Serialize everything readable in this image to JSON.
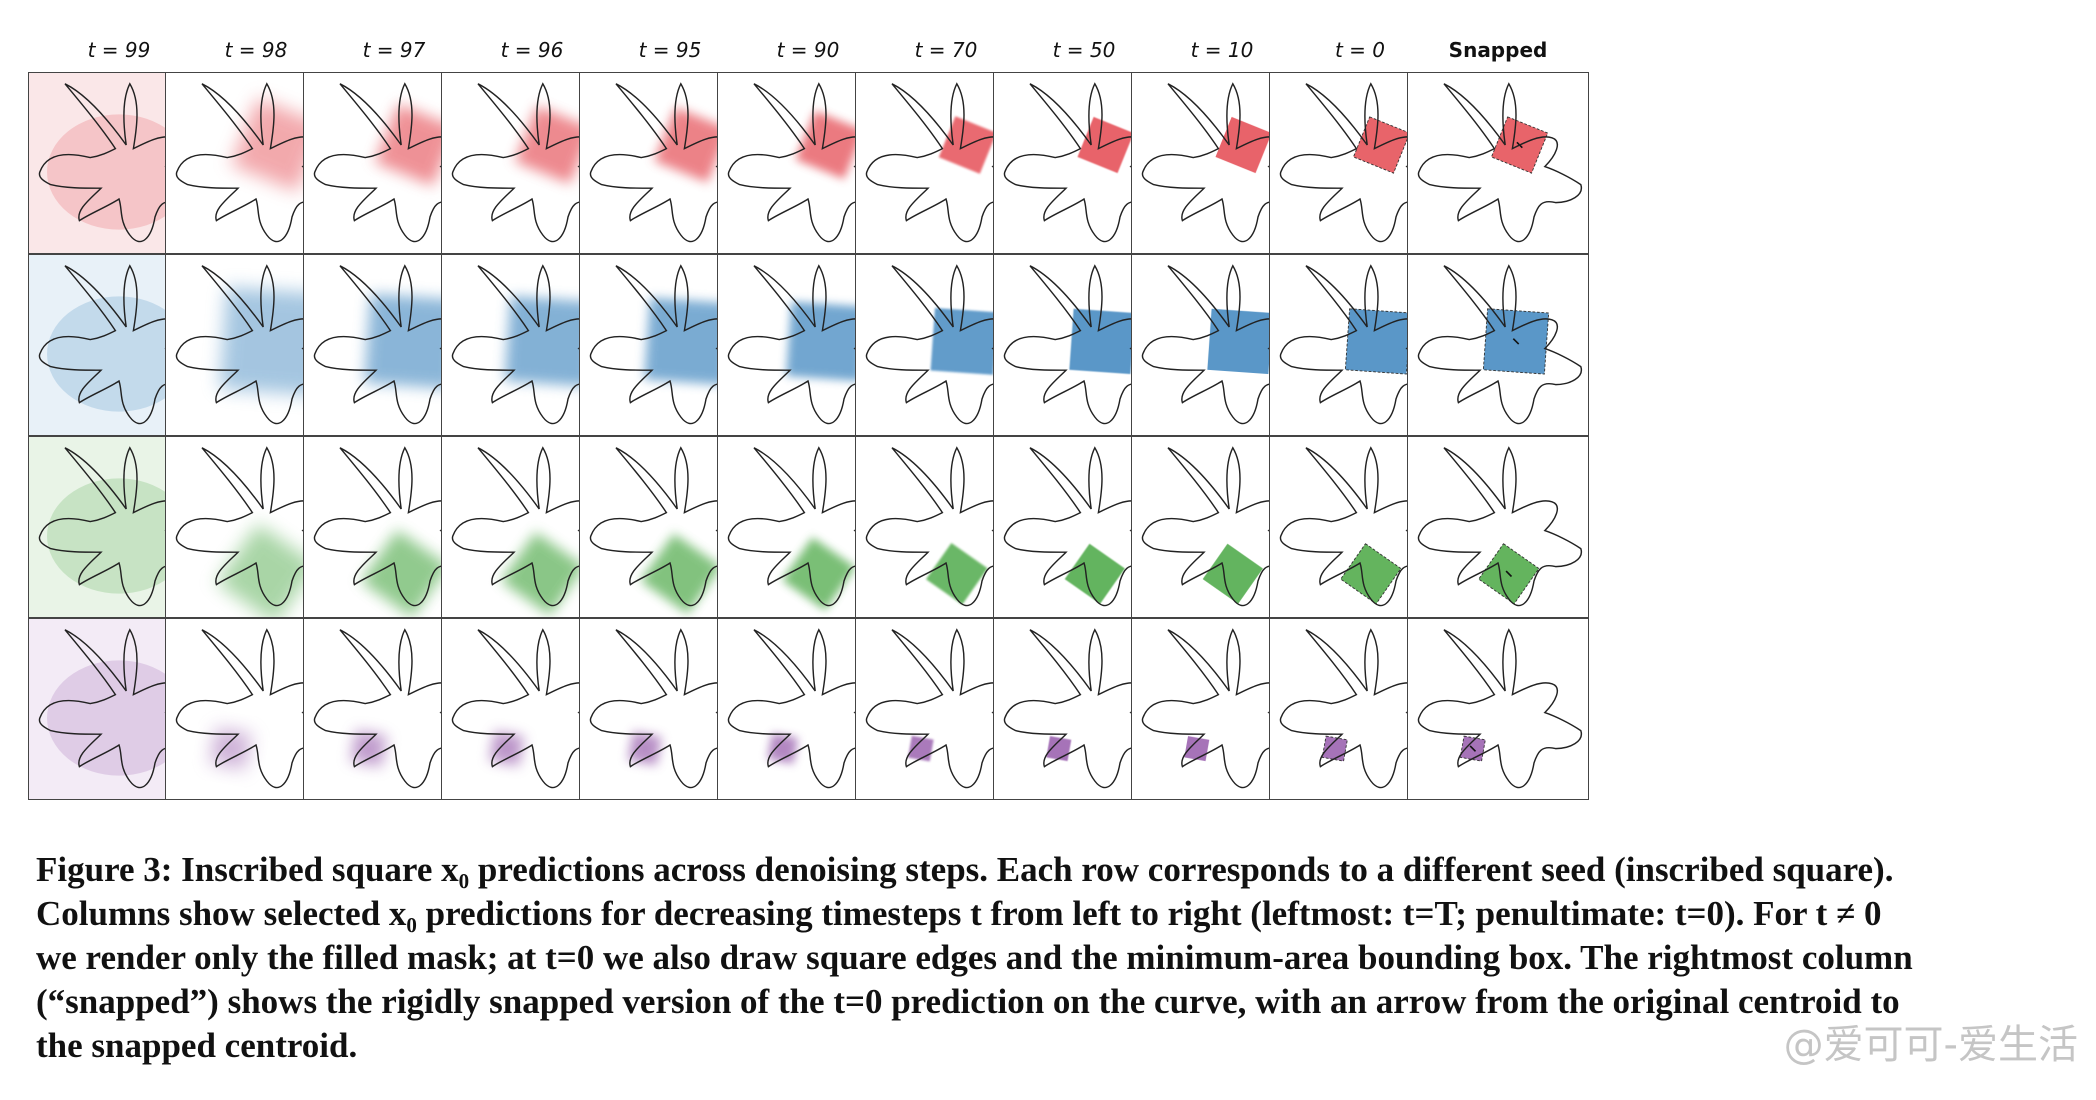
{
  "figure": {
    "columns": [
      "t = 99",
      "t = 98",
      "t = 97",
      "t = 96",
      "t = 95",
      "t = 90",
      "t = 70",
      "t = 50",
      "t = 10",
      "t = 0",
      "Snapped"
    ],
    "rows": [
      {
        "seed": "red",
        "color": "#e8646a",
        "noise_color": "#f2b9bd"
      },
      {
        "seed": "blue",
        "color": "#5a97c8",
        "noise_color": "#bcd6ea"
      },
      {
        "seed": "green",
        "color": "#64b45e",
        "noise_color": "#bfe0bb"
      },
      {
        "seed": "purple",
        "color": "#a673b8",
        "noise_color": "#dcc6e4"
      }
    ]
  },
  "caption": {
    "line1": "Figure 3: Inscribed square x₀ predictions across denoising steps. Each row corresponds to a different seed (inscribed square).",
    "line2": "Columns show selected x₀ predictions for decreasing timesteps t from left to right (leftmost: t=T; penultimate: t=0). For t ≠ 0",
    "line3": "we render only the filled mask; at t=0 we also draw square edges and the minimum-area bounding box. The rightmost column",
    "line4": "(“snapped”) shows the rigidly snapped version of the t=0 prediction on the curve, with an arrow from the original centroid to",
    "line5": "the snapped centroid."
  },
  "watermark": "@爱可可-爱生活"
}
